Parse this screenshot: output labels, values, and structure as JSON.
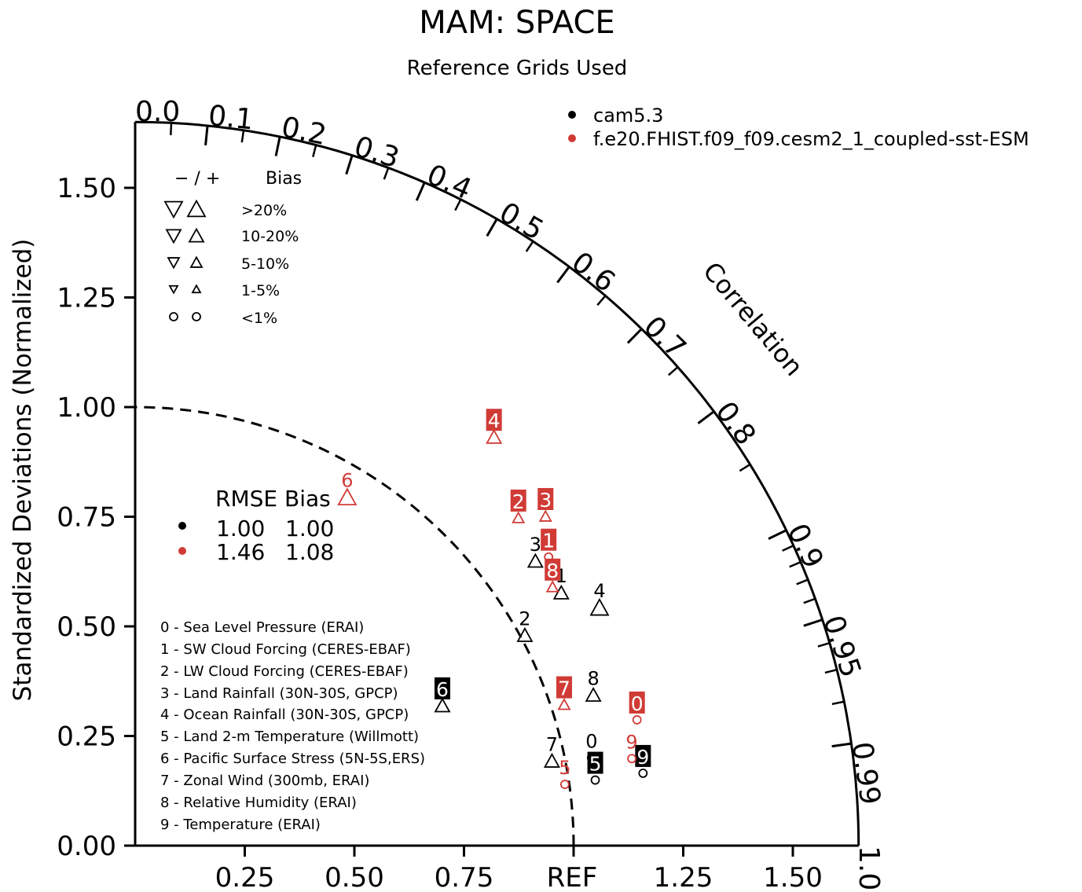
{
  "chart_data": {
    "type": "scatter",
    "title": "MAM: SPACE",
    "subtitle": "Reference Grids Used",
    "ylabel": "Standardized Deviations (Normalized)",
    "arc_label": "Correlation",
    "x_ref_label": "REF",
    "std_ticks": [
      "0.00",
      "0.25",
      "0.50",
      "0.75",
      "1.00",
      "1.25",
      "1.50"
    ],
    "x_ticks": [
      "0.25",
      "0.50",
      "0.75",
      "1.25",
      "1.50"
    ],
    "corr_labels": [
      "0.0",
      "0.1",
      "0.2",
      "0.3",
      "0.4",
      "0.5",
      "0.6",
      "0.7",
      "0.8",
      "0.9",
      "0.95",
      "0.99",
      "1.0"
    ],
    "std_max": 1.65,
    "ref_circle": 1.0,
    "series": [
      {
        "name": "cam5.3",
        "color": "#000000",
        "points": [
          {
            "label": "0",
            "std": 1.06,
            "corr": 0.982,
            "bias": "<1%",
            "dir": "+",
            "boxed": false
          },
          {
            "label": "1",
            "std": 1.13,
            "corr": 0.86,
            "bias": "10-20%",
            "dir": "+",
            "boxed": false
          },
          {
            "label": "2",
            "std": 1.01,
            "corr": 0.88,
            "bias": "10-20%",
            "dir": "+",
            "boxed": false
          },
          {
            "label": "3",
            "std": 1.12,
            "corr": 0.815,
            "bias": "10-20%",
            "dir": "+",
            "boxed": false
          },
          {
            "label": "4",
            "std": 1.19,
            "corr": 0.89,
            "bias": ">20%",
            "dir": "+",
            "boxed": false
          },
          {
            "label": "5",
            "std": 1.06,
            "corr": 0.99,
            "bias": "<1%",
            "dir": "+",
            "boxed": true
          },
          {
            "label": "6",
            "std": 0.77,
            "corr": 0.91,
            "bias": "10-20%",
            "dir": "+",
            "boxed": true
          },
          {
            "label": "7",
            "std": 0.97,
            "corr": 0.98,
            "bias": "10-20%",
            "dir": "+",
            "boxed": false
          },
          {
            "label": "8",
            "std": 1.1,
            "corr": 0.95,
            "bias": "10-20%",
            "dir": "+",
            "boxed": false
          },
          {
            "label": "9",
            "std": 1.17,
            "corr": 0.99,
            "bias": "<1%",
            "dir": "+",
            "boxed": true
          }
        ]
      },
      {
        "name": "f.e20.FHIST.f09_f09.cesm2_1_coupled-sst-ESM",
        "color": "#d03b36",
        "points": [
          {
            "label": "0",
            "std": 1.18,
            "corr": 0.97,
            "bias": "<1%",
            "dir": "+",
            "boxed": true
          },
          {
            "label": "1",
            "std": 1.15,
            "corr": 0.82,
            "bias": "<1%",
            "dir": "+",
            "boxed": true
          },
          {
            "label": "2",
            "std": 1.15,
            "corr": 0.76,
            "bias": "5-10%",
            "dir": "+",
            "boxed": true
          },
          {
            "label": "3",
            "std": 1.2,
            "corr": 0.78,
            "bias": "5-10%",
            "dir": "+",
            "boxed": true
          },
          {
            "label": "4",
            "std": 1.24,
            "corr": 0.66,
            "bias": "10-20%",
            "dir": "+",
            "boxed": true
          },
          {
            "label": "5",
            "std": 0.99,
            "corr": 0.99,
            "bias": "<1%",
            "dir": "+",
            "boxed": false
          },
          {
            "label": "6",
            "std": 0.93,
            "corr": 0.52,
            "bias": ">20%",
            "dir": "+",
            "boxed": false
          },
          {
            "label": "7",
            "std": 1.03,
            "corr": 0.95,
            "bias": "5-10%",
            "dir": "+",
            "boxed": true
          },
          {
            "label": "8",
            "std": 1.12,
            "corr": 0.85,
            "bias": "5-10%",
            "dir": "+",
            "boxed": true
          },
          {
            "label": "9",
            "std": 1.15,
            "corr": 0.985,
            "bias": "<1%",
            "dir": "+",
            "boxed": false
          }
        ]
      }
    ],
    "bias_legend": {
      "header_signs": "− / +",
      "header_label": "Bias",
      "rows": [
        ">20%",
        "10-20%",
        "5-10%",
        "1-5%",
        "<1%"
      ]
    },
    "rmse_bias": {
      "header": "RMSE Bias",
      "rows": [
        {
          "color": "#000000",
          "rmse": "1.00",
          "bias": "1.00"
        },
        {
          "color": "#d03b36",
          "rmse": "1.46",
          "bias": "1.08"
        }
      ]
    },
    "variables": [
      "0 - Sea Level Pressure (ERAI)",
      "1 - SW Cloud Forcing (CERES-EBAF)",
      "2 - LW Cloud Forcing (CERES-EBAF)",
      "3 - Land Rainfall (30N-30S, GPCP)",
      "4 - Ocean Rainfall (30N-30S, GPCP)",
      "5 - Land 2-m Temperature (Willmott)",
      "6 - Pacific Surface Stress (5N-5S,ERS)",
      "7 - Zonal Wind (300mb, ERAI)",
      "8 - Relative Humidity (ERAI)",
      "9 - Temperature (ERAI)"
    ]
  }
}
